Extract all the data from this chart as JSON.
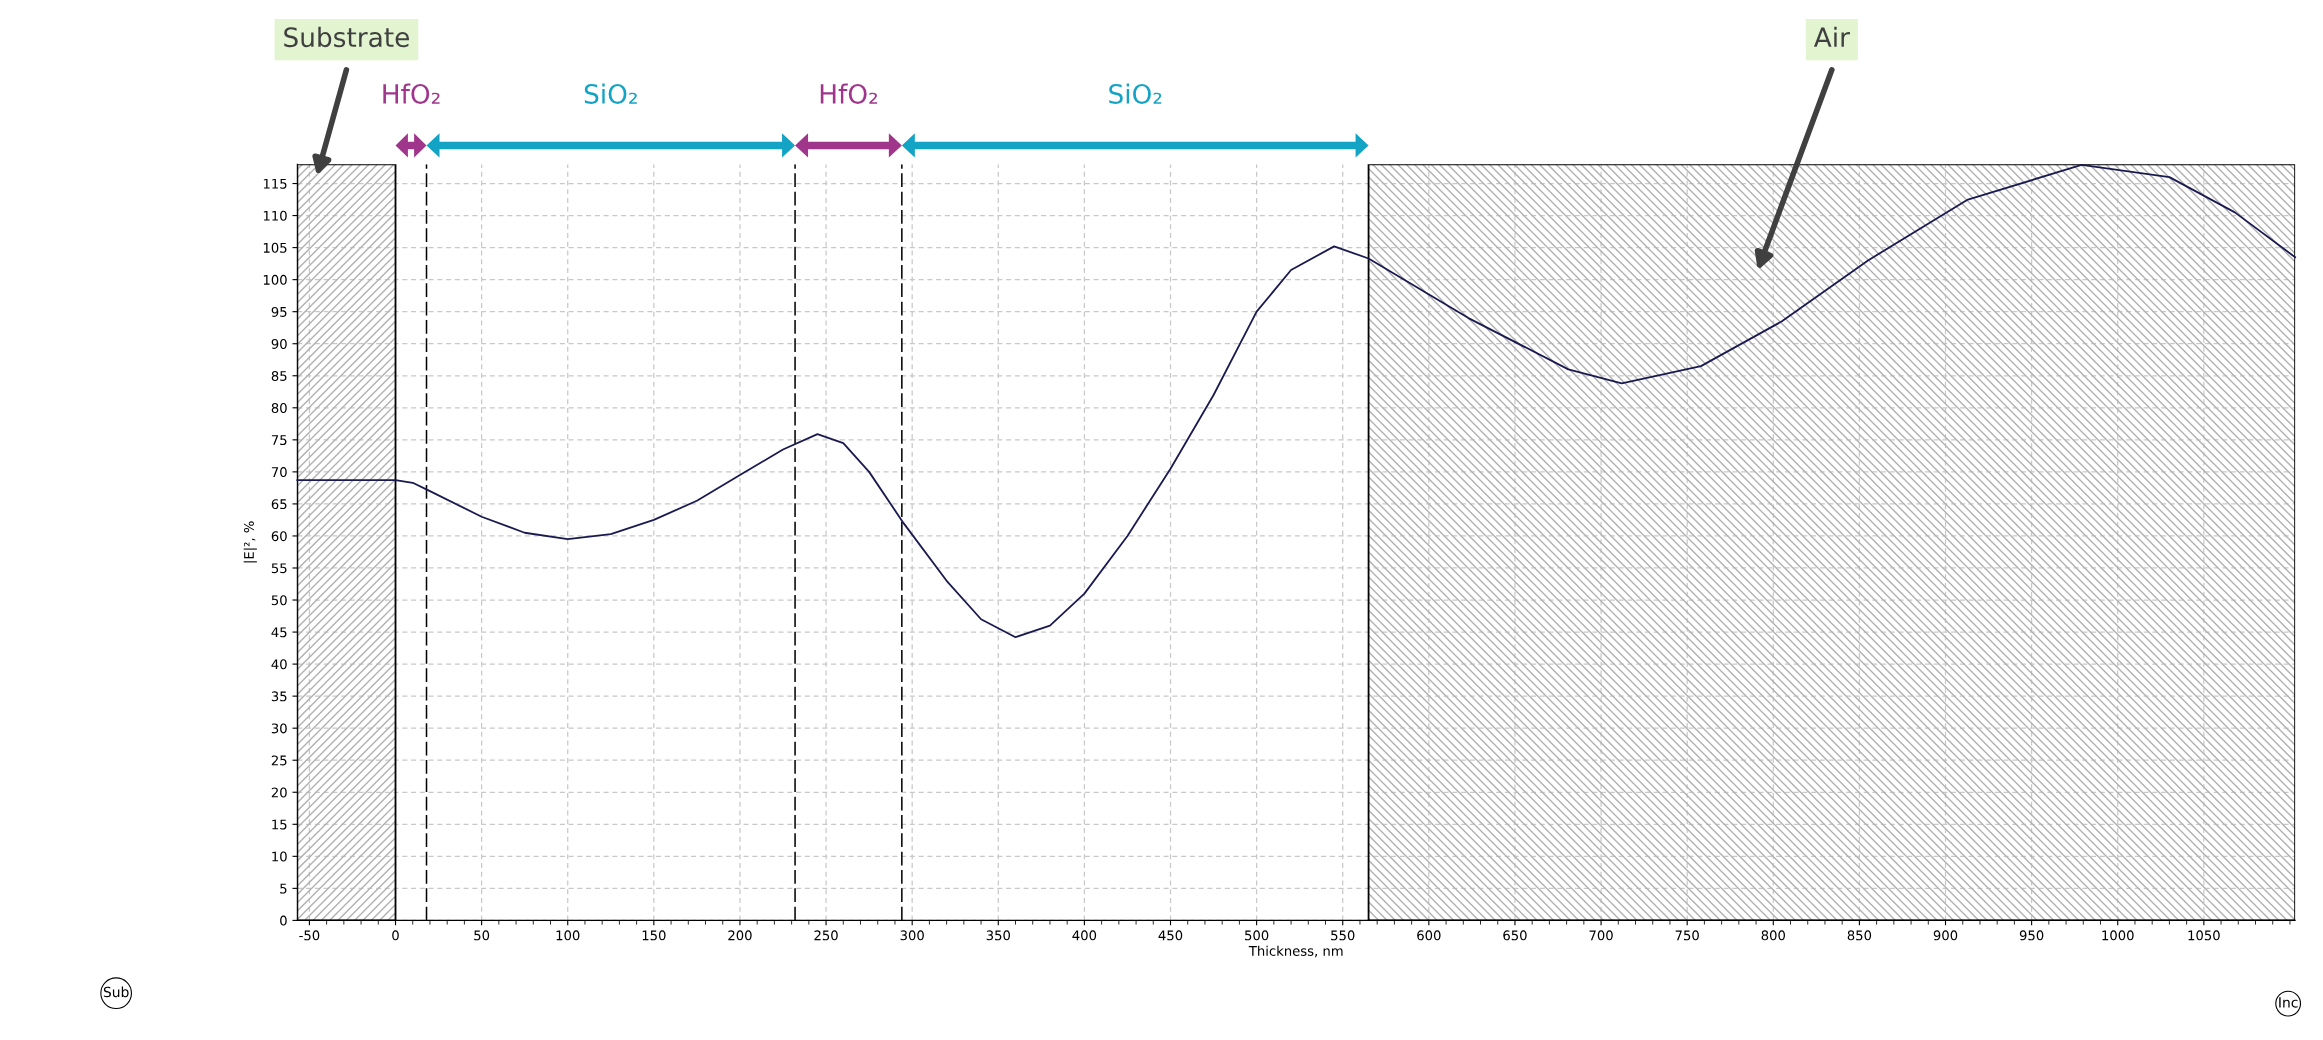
{
  "chart_data": {
    "type": "line",
    "xlabel": "Thickness, nm",
    "ylabel": "|E|², %",
    "xlim": [
      -57,
      1103
    ],
    "ylim": [
      0,
      118
    ],
    "xticks": [
      -50,
      0,
      50,
      100,
      150,
      200,
      250,
      300,
      350,
      400,
      450,
      500,
      550,
      600,
      650,
      700,
      750,
      800,
      850,
      900,
      950,
      1000,
      1050
    ],
    "yticks": [
      0,
      5,
      10,
      15,
      20,
      25,
      30,
      35,
      40,
      45,
      50,
      55,
      60,
      65,
      70,
      75,
      80,
      85,
      90,
      95,
      100,
      105,
      110,
      115
    ],
    "grid": true,
    "line_style": "solid",
    "marker": "none",
    "series": [
      {
        "color": "#1a1a50",
        "x": [
          -57,
          0,
          10,
          20,
          50,
          75,
          100,
          125,
          150,
          175,
          200,
          225,
          245,
          260,
          275,
          295,
          320,
          340,
          360,
          380,
          400,
          425,
          450,
          475,
          500,
          520,
          545,
          565,
          623,
          681,
          712,
          758,
          805,
          855,
          913,
          979,
          1030,
          1068,
          1103
        ],
        "values": [
          68.7,
          68.7,
          68.3,
          67,
          63,
          60.5,
          59.5,
          60.3,
          62.5,
          65.5,
          69.5,
          73.5,
          75.9,
          74.5,
          70,
          62,
          53,
          47,
          44.2,
          46,
          51,
          60,
          70.5,
          82,
          95,
          101.5,
          105.2,
          103.3,
          94,
          86,
          83.8,
          86.5,
          93.5,
          103,
          112.5,
          117.9,
          116,
          110.5,
          103.5
        ]
      }
    ],
    "bands": [
      {
        "axis": "x",
        "from": -57,
        "to": 0,
        "label": "Substrate"
      },
      {
        "axis": "x",
        "from": 565,
        "to": 1103,
        "label": "Air"
      }
    ],
    "ref_lines": [
      {
        "axis": "x",
        "value": 18,
        "line_style": "dashed"
      },
      {
        "axis": "x",
        "value": 232,
        "line_style": "dashed"
      },
      {
        "axis": "x",
        "value": 294,
        "line_style": "dashed"
      }
    ],
    "annotations": [
      "HfO₂",
      "SiO₂",
      "HfO₂",
      "SiO₂",
      "Sub",
      "Inc"
    ]
  }
}
